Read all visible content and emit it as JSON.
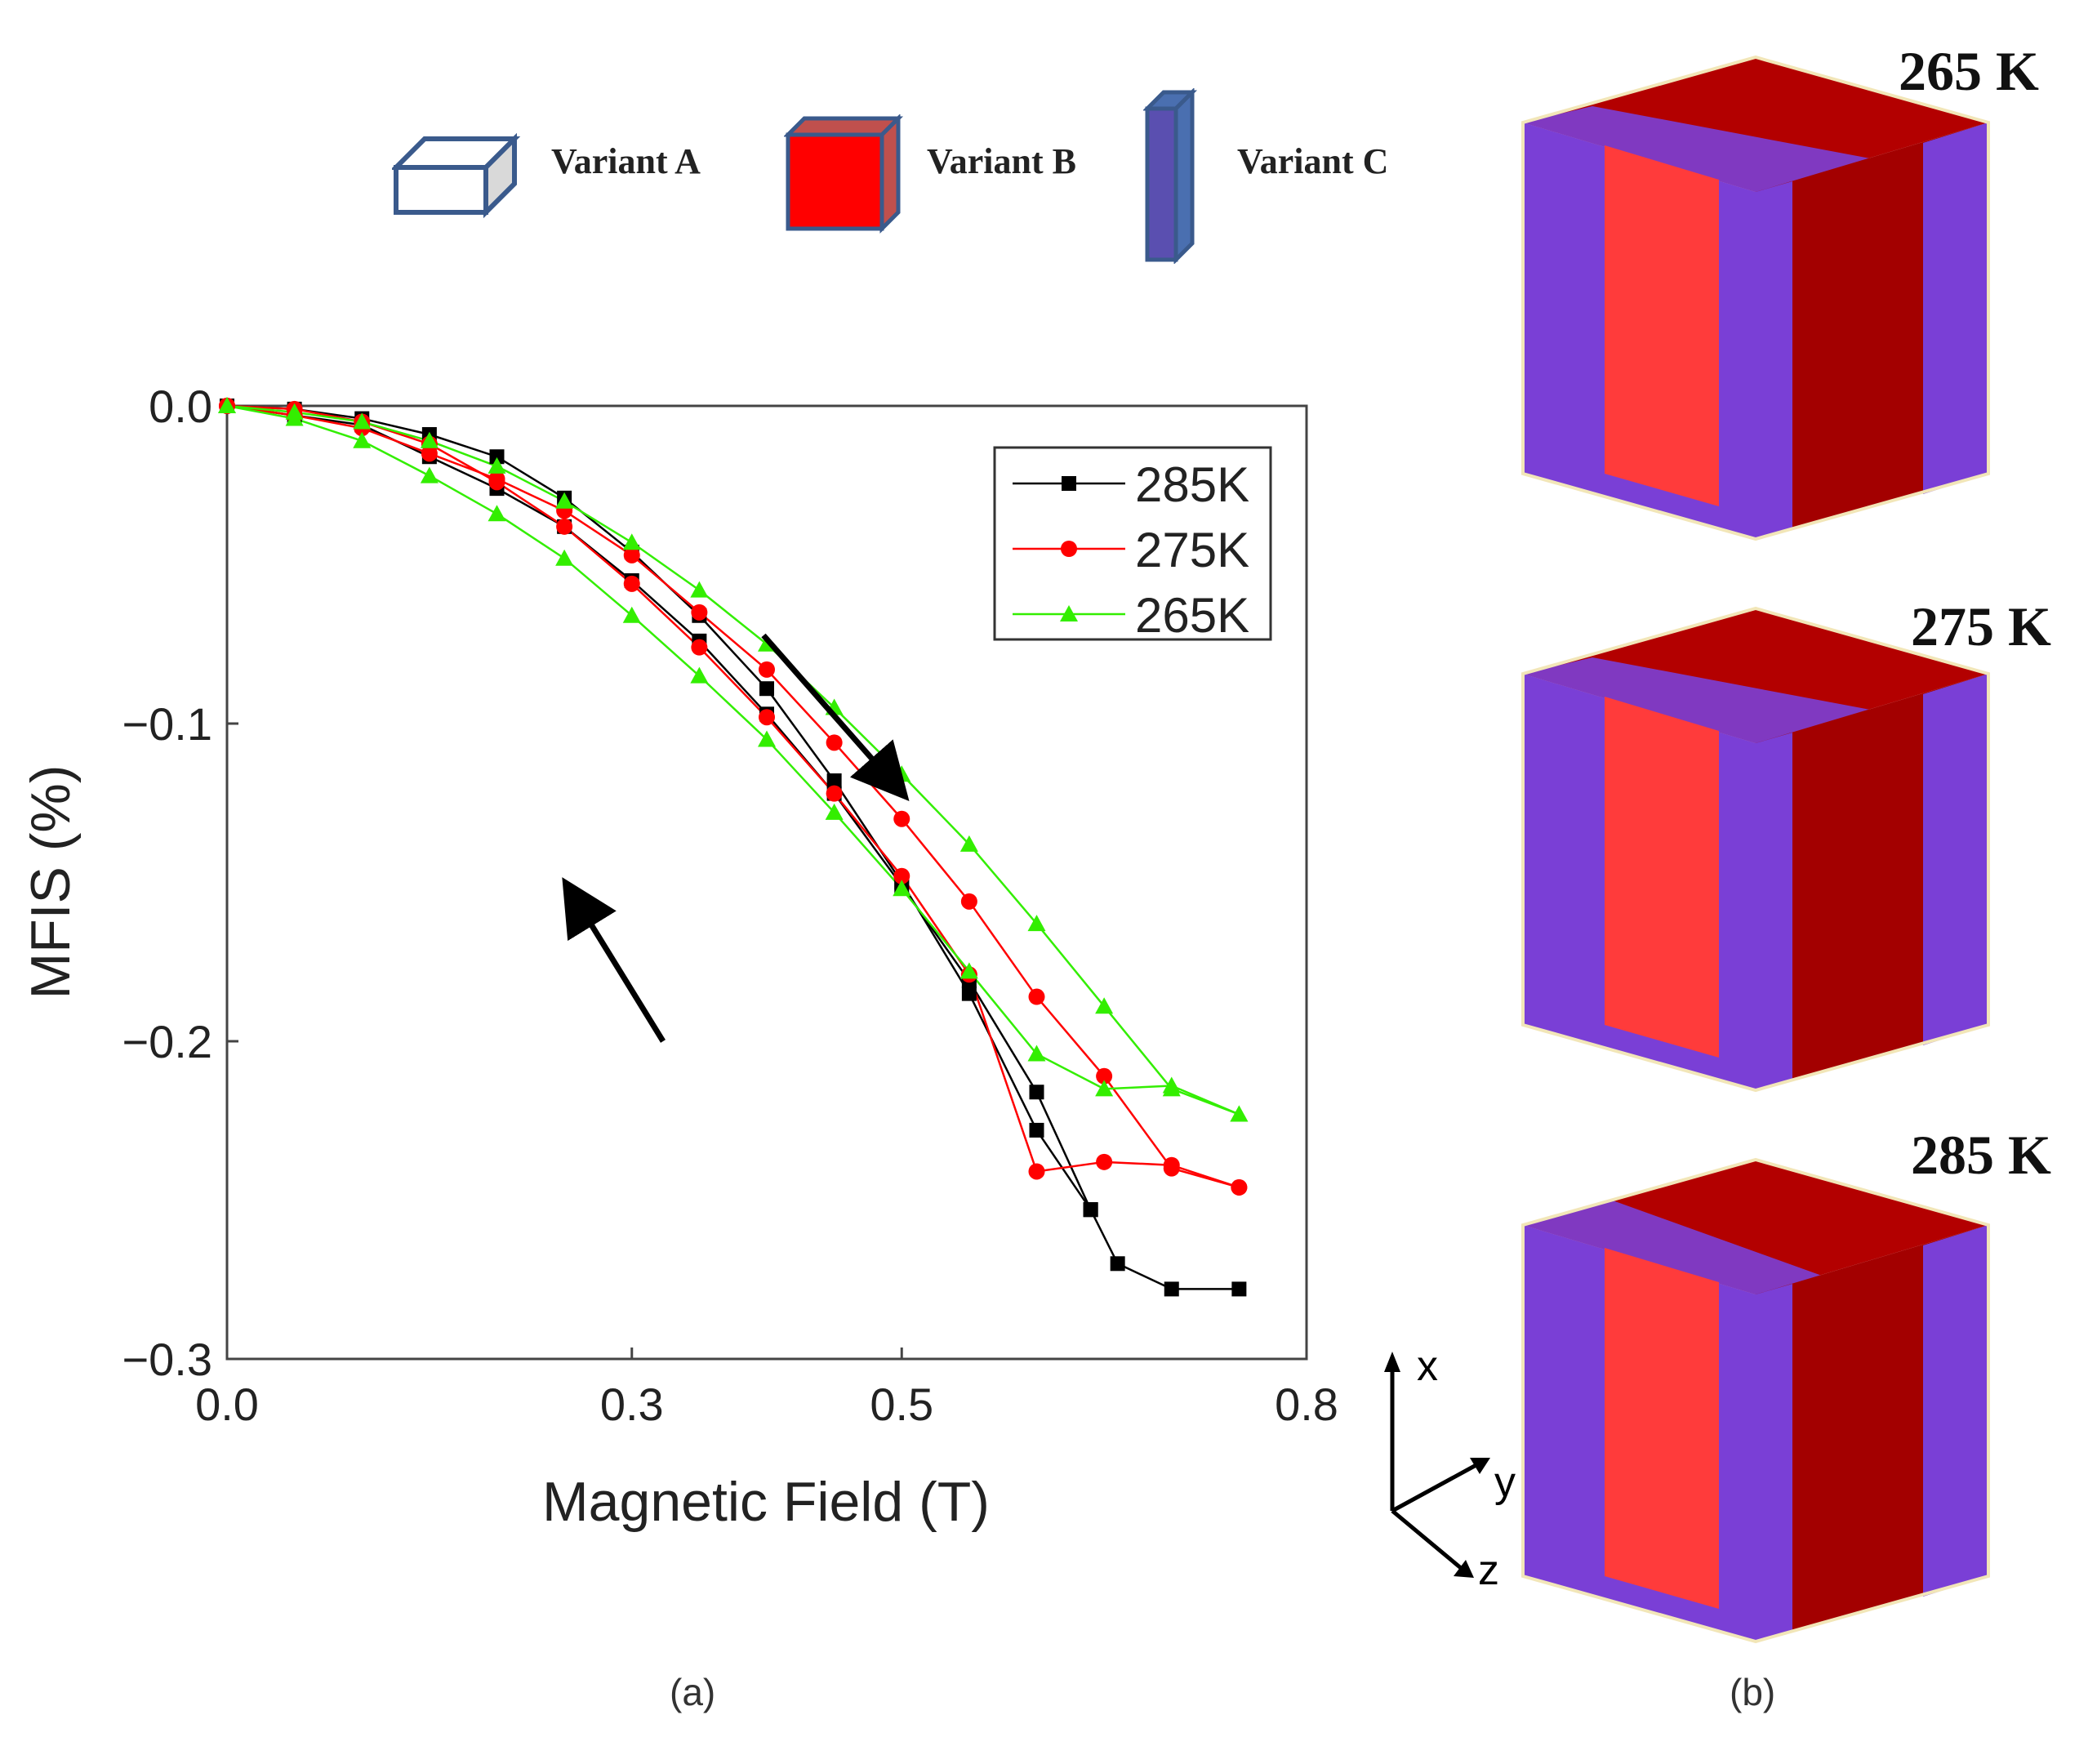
{
  "variant_legend": [
    {
      "label": "Variant A",
      "icon": "variant-a-icon",
      "color": "#ffffff"
    },
    {
      "label": "Variant B",
      "icon": "variant-b-icon",
      "color": "#ff0000"
    },
    {
      "label": "Variant C",
      "icon": "variant-c-icon",
      "color": "#5a4fb0"
    }
  ],
  "captions": {
    "a": "(a)",
    "b": "(b)"
  },
  "cubes": [
    {
      "label": "265 K"
    },
    {
      "label": "275 K"
    },
    {
      "label": "285 K"
    }
  ],
  "axes_triad": {
    "x": "x",
    "y": "y",
    "z": "z"
  },
  "colors": {
    "red": "#ff0000",
    "dark_red": "#b30000",
    "purple": "#7a3fd6",
    "green": "#33ee00",
    "black": "#000000"
  },
  "chart_data": {
    "type": "line",
    "title": "",
    "xlabel": "Magnetic Field (T)",
    "ylabel": "MFIS (%)",
    "xlim": [
      0.0,
      0.8
    ],
    "ylim": [
      -0.3,
      0.0
    ],
    "xticks": [
      0.0,
      0.3,
      0.5,
      0.8
    ],
    "xtick_labels": [
      "0.0",
      "0.3",
      "0.5",
      "0.8"
    ],
    "yticks": [
      0.0,
      -0.1,
      -0.2,
      -0.3
    ],
    "ytick_labels": [
      "0.0",
      "−0.1",
      "−0.2",
      "−0.3"
    ],
    "legend_position": "top-right",
    "series": [
      {
        "name": "285K",
        "color": "#000000",
        "marker": "square",
        "loading": {
          "x": [
            0.0,
            0.05,
            0.1,
            0.15,
            0.2,
            0.25,
            0.3,
            0.35,
            0.4,
            0.45,
            0.5,
            0.55,
            0.6,
            0.64
          ],
          "y": [
            0.0,
            -0.003,
            -0.006,
            -0.016,
            -0.026,
            -0.038,
            -0.055,
            -0.074,
            -0.097,
            -0.122,
            -0.151,
            -0.181,
            -0.216,
            -0.253
          ]
        },
        "tail": {
          "x": [
            0.64,
            0.6,
            0.55,
            0.5,
            0.45,
            0.4,
            0.35,
            0.3,
            0.25,
            0.2,
            0.15,
            0.1,
            0.05,
            0.0
          ],
          "y": [
            -0.253,
            -0.228,
            -0.185,
            -0.15,
            -0.118,
            -0.089,
            -0.066,
            -0.046,
            -0.029,
            -0.016,
            -0.009,
            -0.004,
            -0.001,
            0.0
          ],
          "note": "return branch"
        },
        "end": {
          "x": [
            0.64,
            0.66,
            0.7,
            0.75
          ],
          "y": [
            -0.253,
            -0.27,
            -0.278,
            -0.278
          ]
        }
      },
      {
        "name": "275K",
        "color": "#ff0000",
        "marker": "circle",
        "loading": {
          "x": [
            0.0,
            0.05,
            0.1,
            0.15,
            0.2,
            0.25,
            0.3,
            0.35,
            0.4,
            0.45,
            0.5,
            0.55,
            0.6,
            0.65,
            0.7,
            0.75
          ],
          "y": [
            0.0,
            -0.003,
            -0.007,
            -0.015,
            -0.023,
            -0.033,
            -0.047,
            -0.065,
            -0.083,
            -0.106,
            -0.13,
            -0.156,
            -0.186,
            -0.211,
            -0.24,
            -0.246
          ]
        },
        "unloading": {
          "x": [
            0.75,
            0.7,
            0.65,
            0.6,
            0.55,
            0.5,
            0.45,
            0.4,
            0.35,
            0.3,
            0.25,
            0.2,
            0.15,
            0.1,
            0.05,
            0.0
          ],
          "y": [
            -0.246,
            -0.239,
            -0.238,
            -0.241,
            -0.179,
            -0.148,
            -0.122,
            -0.098,
            -0.076,
            -0.056,
            -0.038,
            -0.024,
            -0.012,
            -0.005,
            -0.001,
            0.0
          ]
        }
      },
      {
        "name": "265K",
        "color": "#33ee00",
        "marker": "triangle",
        "loading": {
          "x": [
            0.0,
            0.05,
            0.1,
            0.15,
            0.2,
            0.25,
            0.3,
            0.35,
            0.4,
            0.45,
            0.5,
            0.55,
            0.6,
            0.65,
            0.7,
            0.75
          ],
          "y": [
            0.0,
            -0.002,
            -0.005,
            -0.011,
            -0.019,
            -0.03,
            -0.043,
            -0.058,
            -0.075,
            -0.095,
            -0.116,
            -0.138,
            -0.163,
            -0.189,
            -0.215,
            -0.223
          ]
        },
        "unloading": {
          "x": [
            0.75,
            0.7,
            0.65,
            0.6,
            0.55,
            0.5,
            0.45,
            0.4,
            0.35,
            0.3,
            0.25,
            0.2,
            0.15,
            0.1,
            0.05,
            0.0
          ],
          "y": [
            -0.223,
            -0.214,
            -0.215,
            -0.204,
            -0.178,
            -0.152,
            -0.128,
            -0.105,
            -0.085,
            -0.066,
            -0.048,
            -0.034,
            -0.022,
            -0.011,
            -0.004,
            0.0
          ]
        }
      }
    ],
    "annotations": [
      "arrow-loading",
      "arrow-unloading"
    ]
  }
}
